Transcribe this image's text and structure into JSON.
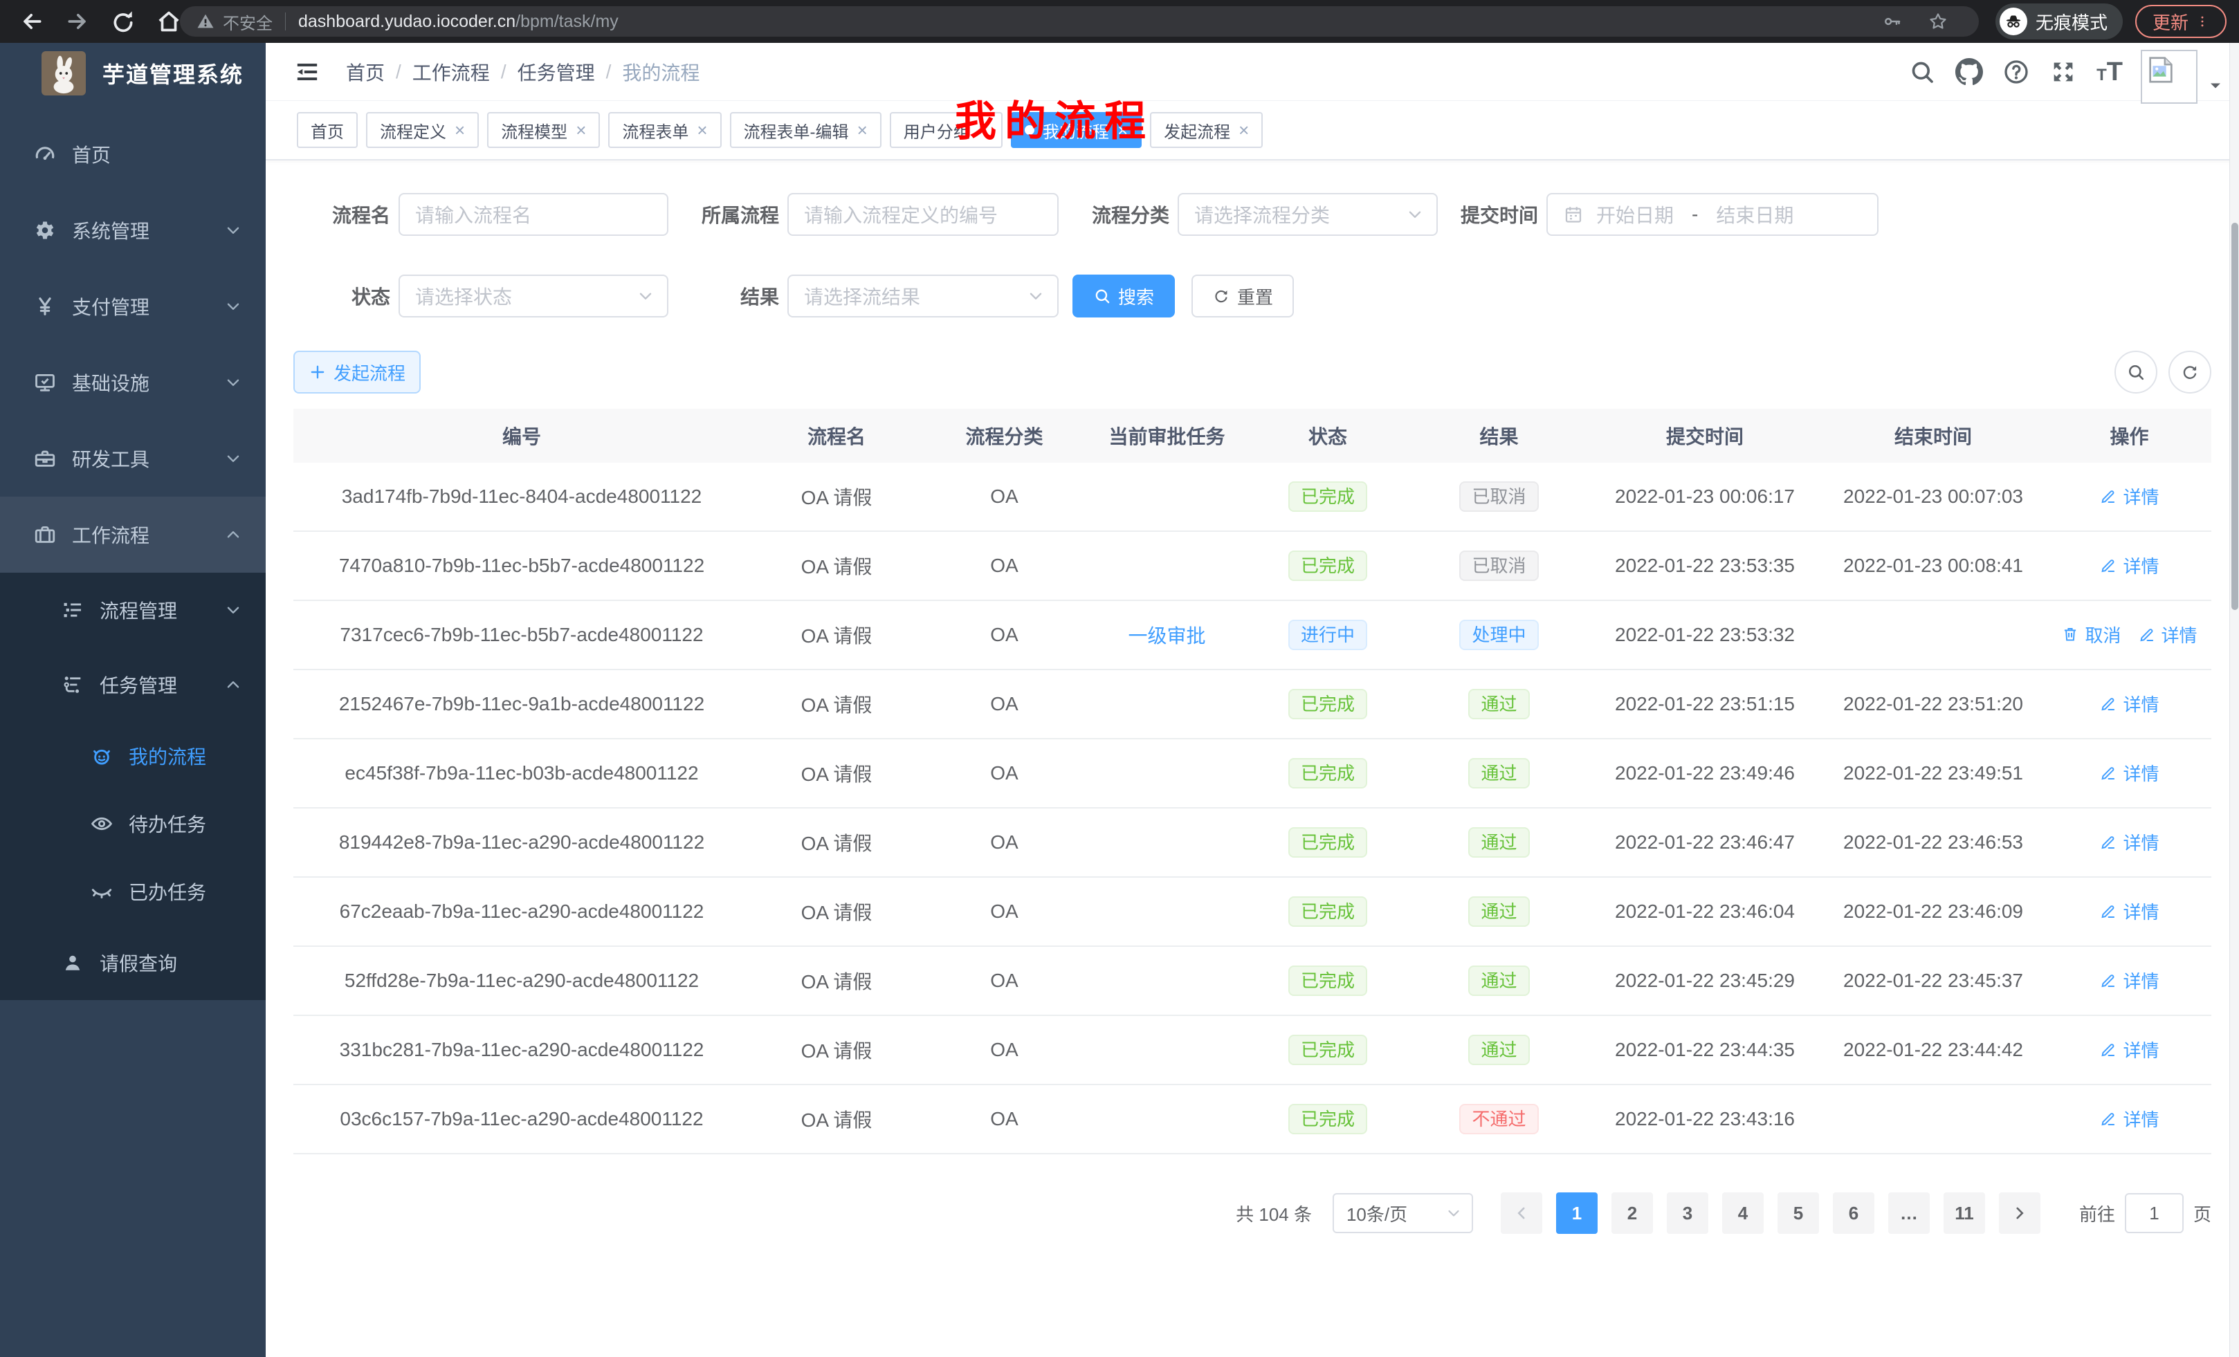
{
  "browser": {
    "security_label": "不安全",
    "url_host": "dashboard.yudao.iocoder.cn",
    "url_path": "/bpm/task/my",
    "incognito_label": "无痕模式",
    "update_label": "更新"
  },
  "sidebar": {
    "title": "芋道管理系统",
    "items": [
      {
        "label": "首页",
        "icon": "gauge-icon",
        "indent": 1,
        "arrow": null,
        "variant": "root",
        "active": false
      },
      {
        "label": "系统管理",
        "icon": "gear-icon",
        "indent": 1,
        "arrow": "down",
        "variant": "root",
        "active": false
      },
      {
        "label": "支付管理",
        "icon": "yen-icon",
        "indent": 1,
        "arrow": "down",
        "variant": "root",
        "active": false
      },
      {
        "label": "基础设施",
        "icon": "monitor-icon",
        "indent": 1,
        "arrow": "down",
        "variant": "root",
        "active": false
      },
      {
        "label": "研发工具",
        "icon": "toolbox-icon",
        "indent": 1,
        "arrow": "down",
        "variant": "root",
        "active": false
      },
      {
        "label": "工作流程",
        "icon": "briefcase-icon",
        "indent": 1,
        "arrow": "up",
        "variant": "parent-open",
        "active": false
      },
      {
        "label": "流程管理",
        "icon": "tree-icon",
        "indent": 2,
        "arrow": "down",
        "variant": "sub",
        "active": false
      },
      {
        "label": "任务管理",
        "icon": "flow-icon",
        "indent": 2,
        "arrow": "up",
        "variant": "sub",
        "active": false
      },
      {
        "label": "我的流程",
        "icon": "robot-icon",
        "indent": 3,
        "arrow": null,
        "variant": "sub",
        "active": true
      },
      {
        "label": "待办任务",
        "icon": "eye-icon",
        "indent": 3,
        "arrow": null,
        "variant": "sub",
        "active": false
      },
      {
        "label": "已办任务",
        "icon": "eye-closed-icon",
        "indent": 3,
        "arrow": null,
        "variant": "sub",
        "active": false
      },
      {
        "label": "请假查询",
        "icon": "user-icon",
        "indent": 2,
        "arrow": null,
        "variant": "sub",
        "active": false
      }
    ]
  },
  "header": {
    "breadcrumb": [
      "首页",
      "工作流程",
      "任务管理",
      "我的流程"
    ],
    "overlay_title": "我的流程"
  },
  "tabs": [
    {
      "label": "首页",
      "closable": false,
      "active": false
    },
    {
      "label": "流程定义",
      "closable": true,
      "active": false
    },
    {
      "label": "流程模型",
      "closable": true,
      "active": false
    },
    {
      "label": "流程表单",
      "closable": true,
      "active": false
    },
    {
      "label": "流程表单-编辑",
      "closable": true,
      "active": false
    },
    {
      "label": "用户分组",
      "closable": true,
      "active": false
    },
    {
      "label": "我的流程",
      "closable": true,
      "active": true
    },
    {
      "label": "发起流程",
      "closable": true,
      "active": false
    }
  ],
  "filters": {
    "row1": [
      {
        "label": "流程名",
        "type": "input",
        "placeholder": "请输入流程名"
      },
      {
        "label": "所属流程",
        "type": "input",
        "placeholder": "请输入流程定义的编号"
      },
      {
        "label": "流程分类",
        "type": "select",
        "placeholder": "请选择流程分类"
      },
      {
        "label": "提交时间",
        "type": "daterange",
        "start_placeholder": "开始日期",
        "separator": "-",
        "end_placeholder": "结束日期"
      }
    ],
    "row2": [
      {
        "label": "状态",
        "type": "select",
        "placeholder": "请选择状态"
      },
      {
        "label": "结果",
        "type": "select",
        "placeholder": "请选择流结果"
      }
    ],
    "search_label": "搜索",
    "reset_label": "重置"
  },
  "toolbar": {
    "start_label": "发起流程"
  },
  "table": {
    "columns": [
      "编号",
      "流程名",
      "流程分类",
      "当前审批任务",
      "状态",
      "结果",
      "提交时间",
      "结束时间",
      "操作"
    ],
    "cancel_label": "取消",
    "detail_label": "详情",
    "rows": [
      {
        "id": "3ad174fb-7b9d-11ec-8404-acde48001122",
        "name": "OA 请假",
        "category": "OA",
        "task": "",
        "status": "已完成",
        "status_type": "success",
        "result": "已取消",
        "result_type": "info",
        "submit_time": "2022-01-23 00:06:17",
        "end_time": "2022-01-23 00:07:03",
        "can_cancel": false
      },
      {
        "id": "7470a810-7b9b-11ec-b5b7-acde48001122",
        "name": "OA 请假",
        "category": "OA",
        "task": "",
        "status": "已完成",
        "status_type": "success",
        "result": "已取消",
        "result_type": "info",
        "submit_time": "2022-01-22 23:53:35",
        "end_time": "2022-01-23 00:08:41",
        "can_cancel": false
      },
      {
        "id": "7317cec6-7b9b-11ec-b5b7-acde48001122",
        "name": "OA 请假",
        "category": "OA",
        "task": "一级审批",
        "status": "进行中",
        "status_type": "primary",
        "result": "处理中",
        "result_type": "primary",
        "submit_time": "2022-01-22 23:53:32",
        "end_time": "",
        "can_cancel": true
      },
      {
        "id": "2152467e-7b9b-11ec-9a1b-acde48001122",
        "name": "OA 请假",
        "category": "OA",
        "task": "",
        "status": "已完成",
        "status_type": "success",
        "result": "通过",
        "result_type": "success",
        "submit_time": "2022-01-22 23:51:15",
        "end_time": "2022-01-22 23:51:20",
        "can_cancel": false
      },
      {
        "id": "ec45f38f-7b9a-11ec-b03b-acde48001122",
        "name": "OA 请假",
        "category": "OA",
        "task": "",
        "status": "已完成",
        "status_type": "success",
        "result": "通过",
        "result_type": "success",
        "submit_time": "2022-01-22 23:49:46",
        "end_time": "2022-01-22 23:49:51",
        "can_cancel": false
      },
      {
        "id": "819442e8-7b9a-11ec-a290-acde48001122",
        "name": "OA 请假",
        "category": "OA",
        "task": "",
        "status": "已完成",
        "status_type": "success",
        "result": "通过",
        "result_type": "success",
        "submit_time": "2022-01-22 23:46:47",
        "end_time": "2022-01-22 23:46:53",
        "can_cancel": false
      },
      {
        "id": "67c2eaab-7b9a-11ec-a290-acde48001122",
        "name": "OA 请假",
        "category": "OA",
        "task": "",
        "status": "已完成",
        "status_type": "success",
        "result": "通过",
        "result_type": "success",
        "submit_time": "2022-01-22 23:46:04",
        "end_time": "2022-01-22 23:46:09",
        "can_cancel": false
      },
      {
        "id": "52ffd28e-7b9a-11ec-a290-acde48001122",
        "name": "OA 请假",
        "category": "OA",
        "task": "",
        "status": "已完成",
        "status_type": "success",
        "result": "通过",
        "result_type": "success",
        "submit_time": "2022-01-22 23:45:29",
        "end_time": "2022-01-22 23:45:37",
        "can_cancel": false
      },
      {
        "id": "331bc281-7b9a-11ec-a290-acde48001122",
        "name": "OA 请假",
        "category": "OA",
        "task": "",
        "status": "已完成",
        "status_type": "success",
        "result": "通过",
        "result_type": "success",
        "submit_time": "2022-01-22 23:44:35",
        "end_time": "2022-01-22 23:44:42",
        "can_cancel": false
      },
      {
        "id": "03c6c157-7b9a-11ec-a290-acde48001122",
        "name": "OA 请假",
        "category": "OA",
        "task": "",
        "status": "已完成",
        "status_type": "success",
        "result": "不通过",
        "result_type": "danger",
        "submit_time": "2022-01-22 23:43:16",
        "end_time": "",
        "can_cancel": false
      }
    ]
  },
  "pagination": {
    "total_label": "共 104 条",
    "page_size": "10条/页",
    "pages": [
      "1",
      "2",
      "3",
      "4",
      "5",
      "6",
      "…",
      "11"
    ],
    "active_page": "1",
    "goto_label": "前往",
    "goto_value": "1",
    "goto_suffix": "页"
  },
  "colors": {
    "accent": "#409eff",
    "success": "#67c23a",
    "info": "#909399",
    "danger": "#f56c6c",
    "sidebar_bg": "#304156",
    "submenu_bg": "#1f2d3d"
  }
}
